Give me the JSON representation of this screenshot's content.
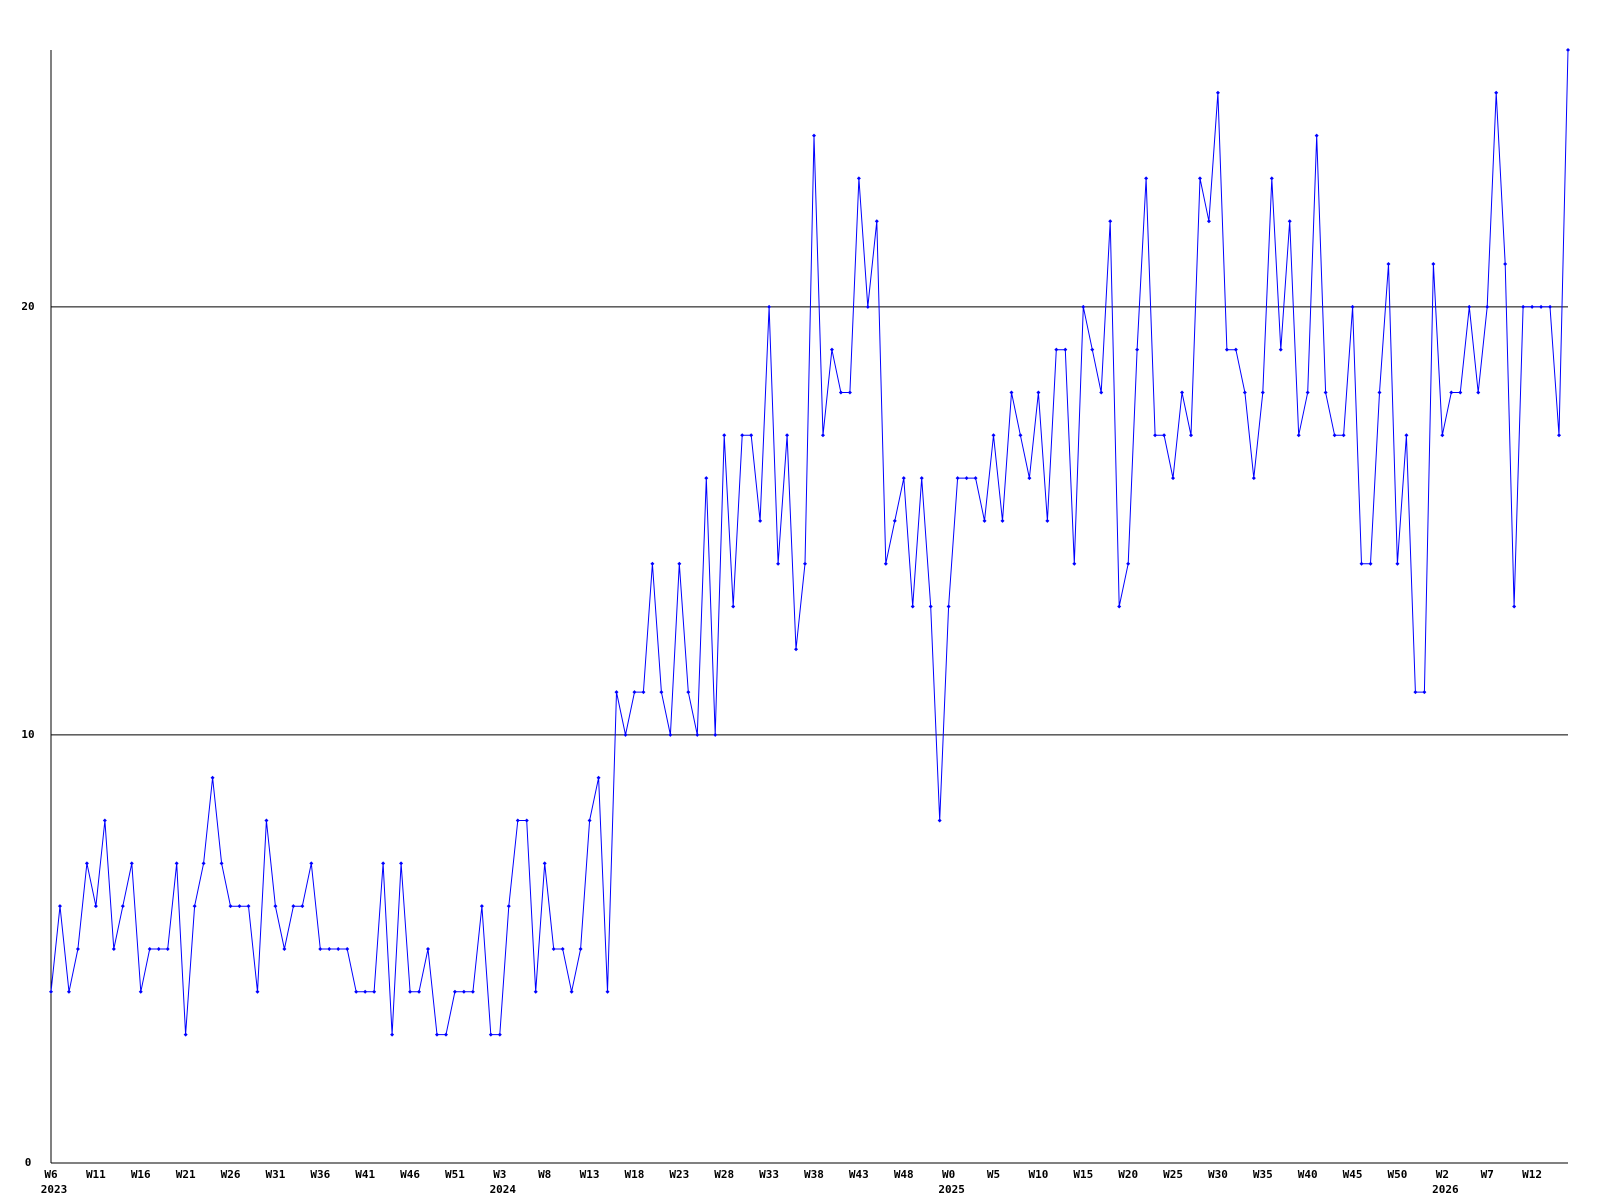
{
  "chart_data": {
    "type": "line",
    "categories": [
      "W6",
      null,
      null,
      null,
      null,
      "W11",
      null,
      null,
      null,
      null,
      "W16",
      null,
      null,
      null,
      null,
      "W21",
      null,
      null,
      null,
      null,
      "W26",
      null,
      null,
      null,
      null,
      "W31",
      null,
      null,
      null,
      null,
      "W36",
      null,
      null,
      null,
      null,
      "W41",
      null,
      null,
      null,
      null,
      "W46",
      null,
      null,
      null,
      null,
      "W51",
      null,
      null,
      null,
      null,
      "W3",
      null,
      null,
      null,
      null,
      "W8",
      null,
      null,
      null,
      null,
      "W13",
      null,
      null,
      null,
      null,
      "W18",
      null,
      null,
      null,
      null,
      "W23",
      null,
      null,
      null,
      null,
      "W28",
      null,
      null,
      null,
      null,
      "W33",
      null,
      null,
      null,
      null,
      "W38",
      null,
      null,
      null,
      null,
      "W43",
      null,
      null,
      null,
      null,
      "W48",
      null,
      null,
      null,
      null,
      "W0",
      null,
      null,
      null,
      null,
      "W5",
      null,
      null,
      null,
      null,
      "W10",
      null,
      null,
      null,
      null,
      "W15",
      null,
      null,
      null,
      null,
      "W20",
      null,
      null,
      null,
      null,
      "W25",
      null,
      null,
      null,
      null,
      "W30",
      null,
      null,
      null,
      null,
      "W35",
      null,
      null,
      null,
      null,
      "W40",
      null,
      null,
      null,
      null,
      "W45",
      null,
      null,
      null,
      null,
      "W50",
      null,
      null,
      null,
      null,
      "W2",
      null,
      null,
      null,
      null,
      "W7",
      null,
      null,
      null,
      null,
      "W12",
      null,
      null,
      null,
      null
    ],
    "category_years": [
      "2023",
      null,
      null,
      null,
      null,
      null,
      null,
      null,
      null,
      null,
      null,
      null,
      null,
      null,
      null,
      null,
      null,
      null,
      null,
      null,
      null,
      null,
      null,
      null,
      null,
      null,
      null,
      null,
      null,
      null,
      null,
      null,
      null,
      null,
      null,
      null,
      null,
      null,
      null,
      null,
      null,
      null,
      null,
      null,
      null,
      null,
      null,
      null,
      null,
      null,
      "2024",
      null,
      null,
      null,
      null,
      null,
      null,
      null,
      null,
      null,
      null,
      null,
      null,
      null,
      null,
      null,
      null,
      null,
      null,
      null,
      null,
      null,
      null,
      null,
      null,
      null,
      null,
      null,
      null,
      null,
      null,
      null,
      null,
      null,
      null,
      null,
      null,
      null,
      null,
      null,
      null,
      null,
      null,
      null,
      null,
      null,
      null,
      null,
      null,
      null,
      "2025",
      null,
      null,
      null,
      null,
      null,
      null,
      null,
      null,
      null,
      null,
      null,
      null,
      null,
      null,
      null,
      null,
      null,
      null,
      null,
      null,
      null,
      null,
      null,
      null,
      null,
      null,
      null,
      null,
      null,
      null,
      null,
      null,
      null,
      null,
      null,
      null,
      null,
      null,
      null,
      null,
      null,
      null,
      null,
      null,
      null,
      null,
      null,
      null,
      null,
      null,
      null,
      null,
      null,
      null,
      "2026",
      null,
      null,
      null,
      null,
      null,
      null,
      null,
      null,
      null,
      null,
      null,
      null,
      null,
      null
    ],
    "series": [
      {
        "color": "#0000ff",
        "values": [
          4,
          6,
          4,
          5,
          7,
          6,
          8,
          5,
          6,
          7,
          4,
          5,
          5,
          5,
          7,
          3,
          6,
          7,
          9,
          7,
          6,
          6,
          6,
          4,
          8,
          6,
          5,
          6,
          6,
          7,
          5,
          5,
          5,
          5,
          4,
          4,
          4,
          7,
          3,
          7,
          4,
          4,
          5,
          3,
          3,
          4,
          4,
          4,
          6,
          3,
          3,
          6,
          8,
          8,
          4,
          7,
          5,
          5,
          4,
          5,
          8,
          9,
          4,
          11,
          10,
          11,
          11,
          14,
          11,
          10,
          14,
          11,
          10,
          16,
          10,
          17,
          13,
          17,
          17,
          15,
          20,
          14,
          17,
          12,
          14,
          24,
          17,
          19,
          18,
          18,
          23,
          20,
          22,
          14,
          15,
          16,
          13,
          16,
          13,
          8,
          13,
          16,
          16,
          16,
          15,
          17,
          15,
          18,
          17,
          16,
          18,
          15,
          19,
          19,
          14,
          20,
          19,
          18,
          22,
          13,
          14,
          19,
          23,
          17,
          17,
          16,
          18,
          17,
          23,
          22,
          25,
          19,
          19,
          18,
          16,
          18,
          23,
          19,
          22,
          17,
          18,
          24,
          18,
          17,
          17,
          20,
          14,
          14,
          18,
          21,
          14,
          17,
          11,
          11,
          21,
          17,
          18,
          18,
          20,
          18,
          20,
          25,
          21,
          13,
          20,
          20,
          20,
          20,
          17,
          26
        ]
      }
    ],
    "ylim": [
      0,
      26
    ],
    "yticks": [
      0,
      10,
      20
    ],
    "grid": true
  }
}
